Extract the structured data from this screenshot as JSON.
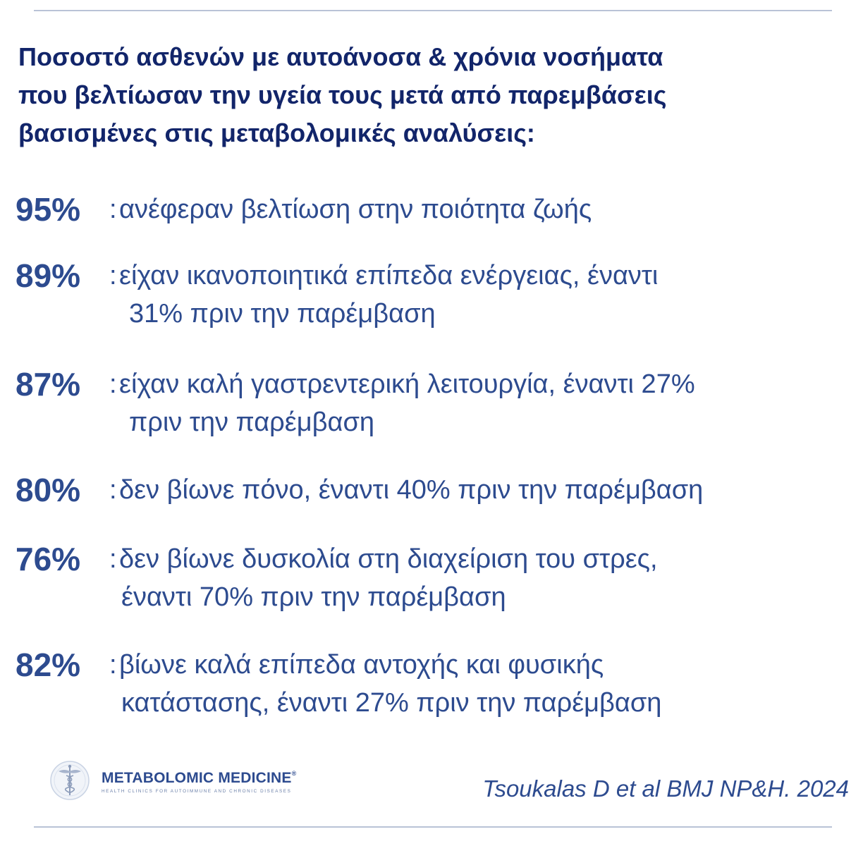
{
  "title": {
    "line1": "Ποσοστό ασθενών με αυτοάνοσα & χρόνια νοσήματα",
    "line2": "που βελτίωσαν την υγεία τους μετά από παρεμβάσεις",
    "line3": "βασισμένες στις μεταβολομικές αναλύσεις:"
  },
  "stats": [
    {
      "pct": "95%",
      "colon": ":",
      "line1": "ανέφεραν βελτίωση στην ποιότητα ζωής",
      "line2": ""
    },
    {
      "pct": "89%",
      "colon": ":",
      "line1": "είχαν ικανοποιητικά επίπεδα ενέργειας, έναντι",
      "line2": "31% πριν την παρέμβαση"
    },
    {
      "pct": "87%",
      "colon": ":",
      "line1": "είχαν καλή γαστρεντερική λειτουργία, έναντι 27%",
      "line2": "πριν την παρέμβαση"
    },
    {
      "pct": "80%",
      "colon": ":",
      "line1": "δεν βίωνε πόνο, έναντι 40% πριν την παρέμβαση",
      "line2": ""
    },
    {
      "pct": "76%",
      "colon": ":",
      "line1": "δεν βίωνε δυσκολία στη διαχείριση του στρες,",
      "line2": "έναντι 70% πριν την παρέμβαση"
    },
    {
      "pct": "82%",
      "colon": ":",
      "line1": "βίωνε καλά επίπεδα αντοχής και φυσικής",
      "line2": "κατάστασης, έναντι 27% πριν την παρέμβαση"
    }
  ],
  "logo": {
    "brand": "METABOLOMIC MEDICINE",
    "registered": "®",
    "tagline": "HEALTH CLINICS FOR AUTOIMMUNE AND CHRONIC DISEASES",
    "emblem_icon": "caduceus-icon"
  },
  "citation": "Tsoukalas D et al BMJ NP&H. 2024",
  "colors": {
    "title": "#12256a",
    "accent": "#2d4b8f",
    "rule": "#b9c3d6"
  }
}
